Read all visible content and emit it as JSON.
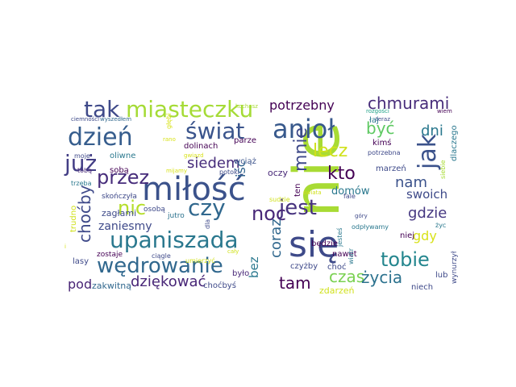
{
  "word_cloud": {
    "words": [
      {
        "text": "nie",
        "color": "#a8db34"
      },
      {
        "text": "się",
        "color": "#3e4a89"
      },
      {
        "text": "miłość",
        "color": "#3b528b"
      },
      {
        "text": "anioł",
        "color": "#38598c"
      },
      {
        "text": "upaniszada",
        "color": "#2a788e"
      },
      {
        "text": "miasteczku",
        "color": "#a5db36"
      },
      {
        "text": "świat",
        "color": "#3a548c"
      },
      {
        "text": "dzień",
        "color": "#365d8d"
      },
      {
        "text": "jak",
        "color": "#3b528b"
      },
      {
        "text": "wędrowanie",
        "color": "#31688e"
      },
      {
        "text": "tak",
        "color": "#3e4989"
      },
      {
        "text": "już",
        "color": "#433e85"
      },
      {
        "text": "czy",
        "color": "#31688e"
      },
      {
        "text": "jest",
        "color": "#46327e"
      },
      {
        "text": "przez",
        "color": "#472d7b"
      },
      {
        "text": "noc",
        "color": "#482878"
      },
      {
        "text": "nic",
        "color": "#b5de2b"
      },
      {
        "text": "tobie",
        "color": "#24868e"
      },
      {
        "text": "lecz",
        "color": "#d0e11c"
      },
      {
        "text": "chmurami",
        "color": "#472c7a"
      },
      {
        "text": "czas",
        "color": "#7ad151"
      },
      {
        "text": "życia",
        "color": "#2c728e"
      },
      {
        "text": "tam",
        "color": "#440154"
      },
      {
        "text": "mnie",
        "color": "#3e4989"
      },
      {
        "text": "kto",
        "color": "#440154"
      },
      {
        "text": "być",
        "color": "#5ec962"
      },
      {
        "text": "dni",
        "color": "#2a788e"
      },
      {
        "text": "siedem",
        "color": "#472d7b"
      },
      {
        "text": "dziękować",
        "color": "#482677"
      },
      {
        "text": "potrzebny",
        "color": "#440154"
      },
      {
        "text": "nam",
        "color": "#3b528b"
      },
      {
        "text": "gdzie",
        "color": "#453781"
      },
      {
        "text": "choćby",
        "color": "#3e4989"
      },
      {
        "text": "pod",
        "color": "#482475"
      },
      {
        "text": "swoich",
        "color": "#3e4a89"
      },
      {
        "text": "coraz",
        "color": "#31688e"
      },
      {
        "text": "gdy",
        "color": "#d8e219"
      },
      {
        "text": "zaniesmy",
        "color": "#3e4989"
      },
      {
        "text": "iść",
        "color": "#32648e"
      },
      {
        "text": "bez",
        "color": "#2a788e"
      },
      {
        "text": "domów",
        "color": "#2a788e"
      },
      {
        "text": "zagłami",
        "color": "#3e4a89"
      },
      {
        "text": "zakwitną",
        "color": "#31688e"
      },
      {
        "text": "oczy",
        "color": "#482878"
      },
      {
        "text": "dolinach",
        "color": "#440154"
      },
      {
        "text": "ciemności",
        "color": "#3e4a89"
      },
      {
        "text": "wyszedłem",
        "color": "#31688e"
      },
      {
        "text": "kochasz",
        "color": "#a8db34"
      },
      {
        "text": "teraz",
        "color": "#3e4989"
      },
      {
        "text": "wiem",
        "color": "#440154"
      },
      {
        "text": "rozgości",
        "color": "#1fa187"
      },
      {
        "text": "łaj",
        "color": "#2a788e"
      },
      {
        "text": "potrzebna",
        "color": "#3e4989"
      },
      {
        "text": "kimś",
        "color": "#440154"
      },
      {
        "text": "głębi",
        "color": "#d8e219"
      },
      {
        "text": "gwiazd",
        "color": "#d8e219"
      },
      {
        "text": "oliwne",
        "color": "#2a788e"
      },
      {
        "text": "sobą",
        "color": "#440154"
      },
      {
        "text": "moje",
        "color": "#3e4989"
      },
      {
        "text": "tobą",
        "color": "#482878"
      },
      {
        "text": "trzeba",
        "color": "#2a788e"
      },
      {
        "text": "potoki",
        "color": "#3e4a89"
      },
      {
        "text": "wciąż",
        "color": "#3b528b"
      },
      {
        "text": "parze",
        "color": "#440154"
      },
      {
        "text": "marzeń",
        "color": "#3e4a89"
      },
      {
        "text": "siebie",
        "color": "#a8db34"
      },
      {
        "text": "dlaczego",
        "color": "#2a788e"
      },
      {
        "text": "mijamy",
        "color": "#d8e219"
      },
      {
        "text": "skończyła",
        "color": "#3e4989"
      },
      {
        "text": "osobą",
        "color": "#3e4989"
      },
      {
        "text": "trudno",
        "color": "#d0e11c"
      },
      {
        "text": "jutro",
        "color": "#2c728e"
      },
      {
        "text": "dla",
        "color": "#3e4989"
      },
      {
        "text": "będzie",
        "color": "#440154"
      },
      {
        "text": "nawet",
        "color": "#440154"
      },
      {
        "text": "choć",
        "color": "#3e4989"
      },
      {
        "text": "góry",
        "color": "#3e4989"
      },
      {
        "text": "życ",
        "color": "#2a788e"
      },
      {
        "text": "niej",
        "color": "#440154"
      },
      {
        "text": "lasy",
        "color": "#3e4989"
      },
      {
        "text": "zostaje",
        "color": "#440154"
      },
      {
        "text": "ciągle",
        "color": "#3e4989"
      },
      {
        "text": "umierzyć",
        "color": "#d0e11c"
      },
      {
        "text": "cały",
        "color": "#d0e11c"
      },
      {
        "text": "było",
        "color": "#482878"
      },
      {
        "text": "choćbyś",
        "color": "#3e4989"
      },
      {
        "text": "jesteś",
        "color": "#2a788e"
      },
      {
        "text": "odpływamy",
        "color": "#2a788e"
      },
      {
        "text": "czyżby",
        "color": "#3e4989"
      },
      {
        "text": "wiatr",
        "color": "#2a788e"
      },
      {
        "text": "lub",
        "color": "#3e4989"
      },
      {
        "text": "niech",
        "color": "#3e4989"
      },
      {
        "text": "zdarzeń",
        "color": "#d0e11c"
      },
      {
        "text": "wynurzył",
        "color": "#3e4989"
      },
      {
        "text": "ten",
        "color": "#440154"
      },
      {
        "text": "fale",
        "color": "#3e4989"
      },
      {
        "text": "świata",
        "color": "#d0e11c"
      },
      {
        "text": "sudzie",
        "color": "#d0e11c"
      },
      {
        "text": "rano",
        "color": "#d8e219"
      },
      {
        "text": "i",
        "color": "#d8e219"
      }
    ]
  }
}
